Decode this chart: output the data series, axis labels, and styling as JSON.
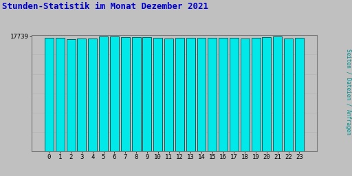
{
  "title": "Stunden-Statistik im Monat Dezember 2021",
  "title_color": "#0000cc",
  "ylabel": "Seiten / Dateien / Anfragen",
  "ylabel_color": "#009090",
  "background_color": "#c0c0c0",
  "bar_color": "#00e8e8",
  "bar_edge_color": "#006060",
  "small_bar_color": "#0000bb",
  "categories": [
    0,
    1,
    2,
    3,
    4,
    5,
    6,
    7,
    8,
    9,
    10,
    11,
    12,
    13,
    14,
    15,
    16,
    17,
    18,
    19,
    20,
    21,
    22,
    23
  ],
  "main_values": [
    17500,
    17480,
    17310,
    17360,
    17430,
    17739,
    17690,
    17640,
    17600,
    17570,
    17550,
    17430,
    17470,
    17490,
    17465,
    17475,
    17480,
    17460,
    17360,
    17540,
    17570,
    17710,
    17370,
    17455
  ],
  "small_values": [
    55,
    55,
    60,
    58,
    65,
    68,
    62,
    58,
    55,
    55,
    52,
    55,
    52,
    55,
    55,
    55,
    52,
    55,
    52,
    58,
    58,
    58,
    58,
    55
  ],
  "ymin": 0,
  "ymax": 17900,
  "ytick_val": 17739,
  "grid_color": "#b0b0b0"
}
